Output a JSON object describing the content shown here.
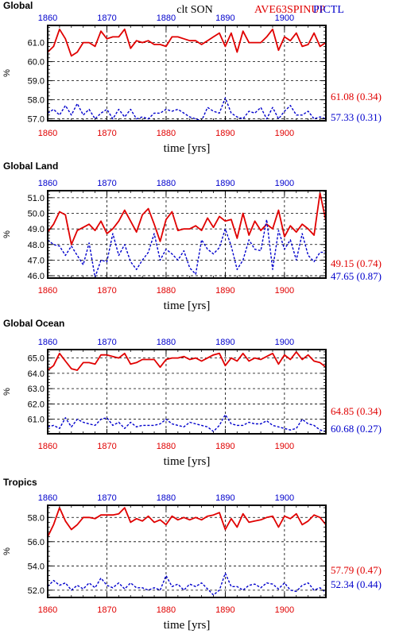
{
  "header": {
    "center_title": "clt SON",
    "exp_label": "AVE63SPINUP",
    "ctl_label": "PICTL"
  },
  "colors": {
    "exp": "#e00000",
    "ctl": "#0000cc",
    "axis": "#000000",
    "grid": "#000000"
  },
  "chart_data": [
    {
      "type": "line",
      "panel": "Global",
      "title": "Global",
      "xlabel": "time [yrs]",
      "ylabel": "%",
      "xlim": [
        1860,
        1907
      ],
      "ylim": [
        56.9,
        61.9
      ],
      "yticks": [
        57.0,
        58.0,
        59.0,
        60.0,
        61.0
      ],
      "xticks": [
        1860,
        1870,
        1880,
        1890,
        1900
      ],
      "grid": true,
      "summary_exp": "61.08 (0.34)",
      "summary_ctl": "57.33 (0.31)",
      "series": [
        {
          "name": "AVE63SPINUP",
          "color": "#e00000",
          "style": "solid",
          "x": [
            1860,
            1861,
            1862,
            1863,
            1864,
            1865,
            1866,
            1867,
            1868,
            1869,
            1870,
            1871,
            1872,
            1873,
            1874,
            1875,
            1876,
            1877,
            1878,
            1879,
            1880,
            1881,
            1882,
            1883,
            1884,
            1885,
            1886,
            1887,
            1888,
            1889,
            1890,
            1891,
            1892,
            1893,
            1894,
            1895,
            1896,
            1897,
            1898,
            1899,
            1900,
            1901,
            1902,
            1903,
            1904,
            1905,
            1906,
            1907
          ],
          "values": [
            60.5,
            60.8,
            61.7,
            61.2,
            60.3,
            60.5,
            61.0,
            61.0,
            60.8,
            61.6,
            61.2,
            61.3,
            61.3,
            61.7,
            60.7,
            61.1,
            61.0,
            61.1,
            60.9,
            60.9,
            60.8,
            61.3,
            61.3,
            61.2,
            61.1,
            61.1,
            60.9,
            61.1,
            61.3,
            61.5,
            60.8,
            61.5,
            60.5,
            61.6,
            61.0,
            61.0,
            61.0,
            61.3,
            61.7,
            60.6,
            61.3,
            61.1,
            61.5,
            60.8,
            60.9,
            61.5,
            60.8,
            61.0
          ]
        },
        {
          "name": "PICTL",
          "color": "#0000cc",
          "style": "dashed",
          "x": [
            1860,
            1861,
            1862,
            1863,
            1864,
            1865,
            1866,
            1867,
            1868,
            1869,
            1870,
            1871,
            1872,
            1873,
            1874,
            1875,
            1876,
            1877,
            1878,
            1879,
            1880,
            1881,
            1882,
            1883,
            1884,
            1885,
            1886,
            1887,
            1888,
            1889,
            1890,
            1891,
            1892,
            1893,
            1894,
            1895,
            1896,
            1897,
            1898,
            1899,
            1900,
            1901,
            1902,
            1903,
            1904,
            1905,
            1906,
            1907
          ],
          "values": [
            57.3,
            57.5,
            57.2,
            57.7,
            57.2,
            57.8,
            57.2,
            57.5,
            57.0,
            57.3,
            57.5,
            57.0,
            57.5,
            57.1,
            57.5,
            57.0,
            57.1,
            57.0,
            57.3,
            57.3,
            57.5,
            57.4,
            57.5,
            57.3,
            57.1,
            57.0,
            56.9,
            57.6,
            57.4,
            57.3,
            58.1,
            57.3,
            57.1,
            57.0,
            57.4,
            57.3,
            57.6,
            57.0,
            57.6,
            57.0,
            57.4,
            57.7,
            57.2,
            57.2,
            57.4,
            57.0,
            57.1,
            57.0
          ]
        }
      ]
    },
    {
      "type": "line",
      "panel": "Global Land",
      "title": "Global Land",
      "xlabel": "time [yrs]",
      "ylabel": "%",
      "xlim": [
        1860,
        1907
      ],
      "ylim": [
        45.85,
        51.45
      ],
      "yticks": [
        46.0,
        47.0,
        48.0,
        49.0,
        50.0,
        51.0
      ],
      "xticks": [
        1860,
        1870,
        1880,
        1890,
        1900
      ],
      "grid": true,
      "summary_exp": "49.15 (0.74)",
      "summary_ctl": "47.65 (0.87)",
      "series": [
        {
          "name": "AVE63SPINUP",
          "color": "#e00000",
          "style": "solid",
          "x": [
            1860,
            1861,
            1862,
            1863,
            1864,
            1865,
            1866,
            1867,
            1868,
            1869,
            1870,
            1871,
            1872,
            1873,
            1874,
            1875,
            1876,
            1877,
            1878,
            1879,
            1880,
            1881,
            1882,
            1883,
            1884,
            1885,
            1886,
            1887,
            1888,
            1889,
            1890,
            1891,
            1892,
            1893,
            1894,
            1895,
            1896,
            1897,
            1898,
            1899,
            1900,
            1901,
            1902,
            1903,
            1904,
            1905,
            1906,
            1907
          ],
          "values": [
            48.8,
            49.3,
            50.1,
            49.9,
            48.0,
            48.9,
            49.1,
            49.3,
            48.9,
            49.5,
            48.7,
            49.0,
            49.5,
            50.2,
            49.5,
            48.8,
            49.9,
            50.3,
            49.3,
            48.2,
            49.6,
            50.1,
            48.9,
            49.0,
            49.0,
            49.2,
            48.9,
            49.7,
            49.1,
            49.8,
            49.5,
            49.6,
            48.4,
            50.0,
            48.6,
            49.5,
            48.9,
            49.3,
            49.0,
            50.2,
            48.5,
            49.2,
            48.8,
            49.3,
            49.0,
            48.6,
            51.3,
            49.5
          ]
        },
        {
          "name": "PICTL",
          "color": "#0000cc",
          "style": "dashed",
          "x": [
            1860,
            1861,
            1862,
            1863,
            1864,
            1865,
            1866,
            1867,
            1868,
            1869,
            1870,
            1871,
            1872,
            1873,
            1874,
            1875,
            1876,
            1877,
            1878,
            1879,
            1880,
            1881,
            1882,
            1883,
            1884,
            1885,
            1886,
            1887,
            1888,
            1889,
            1890,
            1891,
            1892,
            1893,
            1894,
            1895,
            1896,
            1897,
            1898,
            1899,
            1900,
            1901,
            1902,
            1903,
            1904,
            1905,
            1906,
            1907
          ],
          "values": [
            48.3,
            48.0,
            47.9,
            47.3,
            47.9,
            47.3,
            46.7,
            48.1,
            45.9,
            47.0,
            46.9,
            48.7,
            47.3,
            48.0,
            46.9,
            46.4,
            47.0,
            47.5,
            48.7,
            47.0,
            47.7,
            47.4,
            47.0,
            47.6,
            46.5,
            46.1,
            48.3,
            47.7,
            47.4,
            47.8,
            49.0,
            47.9,
            46.4,
            47.0,
            48.3,
            47.7,
            47.6,
            49.6,
            46.4,
            48.9,
            47.7,
            48.3,
            47.0,
            48.7,
            47.3,
            46.9,
            47.5,
            47.5
          ]
        }
      ]
    },
    {
      "type": "line",
      "panel": "Global Ocean",
      "title": "Global Ocean",
      "xlabel": "time [yrs]",
      "ylabel": "%",
      "xlim": [
        1860,
        1907
      ],
      "ylim": [
        60.05,
        65.55
      ],
      "yticks": [
        61.0,
        62.0,
        63.0,
        64.0,
        65.0
      ],
      "xticks": [
        1860,
        1870,
        1880,
        1890,
        1900
      ],
      "grid": true,
      "summary_exp": "64.85 (0.34)",
      "summary_ctl": "60.68 (0.27)",
      "series": [
        {
          "name": "AVE63SPINUP",
          "color": "#e00000",
          "style": "solid",
          "x": [
            1860,
            1861,
            1862,
            1863,
            1864,
            1865,
            1866,
            1867,
            1868,
            1869,
            1870,
            1871,
            1872,
            1873,
            1874,
            1875,
            1876,
            1877,
            1878,
            1879,
            1880,
            1881,
            1882,
            1883,
            1884,
            1885,
            1886,
            1887,
            1888,
            1889,
            1890,
            1891,
            1892,
            1893,
            1894,
            1895,
            1896,
            1897,
            1898,
            1899,
            1900,
            1901,
            1902,
            1903,
            1904,
            1905,
            1906,
            1907
          ],
          "values": [
            64.2,
            64.5,
            65.3,
            64.8,
            64.3,
            64.2,
            64.7,
            64.7,
            64.6,
            65.2,
            65.2,
            65.1,
            65.0,
            65.3,
            64.6,
            64.7,
            64.9,
            64.9,
            64.9,
            64.4,
            64.9,
            65.0,
            65.0,
            65.1,
            64.9,
            65.0,
            64.8,
            65.0,
            65.2,
            65.3,
            64.5,
            65.0,
            64.8,
            65.3,
            64.8,
            65.0,
            64.9,
            65.1,
            65.3,
            64.6,
            65.2,
            64.9,
            65.4,
            64.9,
            65.2,
            64.8,
            64.7,
            64.4
          ]
        },
        {
          "name": "PICTL",
          "color": "#0000cc",
          "style": "dashed",
          "x": [
            1860,
            1861,
            1862,
            1863,
            1864,
            1865,
            1866,
            1867,
            1868,
            1869,
            1870,
            1871,
            1872,
            1873,
            1874,
            1875,
            1876,
            1877,
            1878,
            1879,
            1880,
            1881,
            1882,
            1883,
            1884,
            1885,
            1886,
            1887,
            1888,
            1889,
            1890,
            1891,
            1892,
            1893,
            1894,
            1895,
            1896,
            1897,
            1898,
            1899,
            1900,
            1901,
            1902,
            1903,
            1904,
            1905,
            1906,
            1907
          ],
          "values": [
            60.5,
            60.6,
            60.4,
            61.1,
            60.5,
            61.0,
            60.8,
            60.7,
            60.6,
            61.0,
            61.1,
            60.6,
            60.8,
            60.4,
            60.8,
            60.5,
            60.6,
            60.6,
            60.6,
            60.7,
            61.0,
            60.7,
            60.6,
            60.5,
            60.8,
            60.7,
            60.6,
            60.5,
            60.2,
            60.6,
            61.3,
            60.7,
            60.6,
            60.6,
            60.8,
            60.7,
            60.7,
            60.9,
            60.6,
            60.5,
            60.4,
            60.3,
            60.4,
            61.0,
            60.7,
            60.6,
            60.3,
            60.2
          ]
        }
      ]
    },
    {
      "type": "line",
      "panel": "Tropics",
      "title": "Tropics",
      "xlabel": "time [yrs]",
      "ylabel": "%",
      "xlim": [
        1860,
        1907
      ],
      "ylim": [
        51.4,
        59.0
      ],
      "yticks": [
        52.0,
        54.0,
        56.0,
        58.0
      ],
      "xticks": [
        1860,
        1870,
        1880,
        1890,
        1900
      ],
      "grid": true,
      "summary_exp": "57.79 (0.47)",
      "summary_ctl": "52.34 (0.44)",
      "series": [
        {
          "name": "AVE63SPINUP",
          "color": "#e00000",
          "style": "solid",
          "x": [
            1860,
            1861,
            1862,
            1863,
            1864,
            1865,
            1866,
            1867,
            1868,
            1869,
            1870,
            1871,
            1872,
            1873,
            1874,
            1875,
            1876,
            1877,
            1878,
            1879,
            1880,
            1881,
            1882,
            1883,
            1884,
            1885,
            1886,
            1887,
            1888,
            1889,
            1890,
            1891,
            1892,
            1893,
            1894,
            1895,
            1896,
            1897,
            1898,
            1899,
            1900,
            1901,
            1902,
            1903,
            1904,
            1905,
            1906,
            1907
          ],
          "values": [
            56.4,
            57.4,
            58.8,
            57.7,
            57.0,
            57.4,
            58.0,
            58.0,
            57.9,
            58.2,
            58.2,
            58.2,
            58.3,
            58.8,
            57.6,
            57.9,
            57.7,
            58.1,
            57.6,
            57.8,
            57.4,
            58.1,
            57.8,
            58.0,
            57.8,
            58.0,
            57.8,
            58.1,
            58.2,
            58.4,
            57.0,
            57.9,
            57.2,
            58.3,
            57.6,
            57.7,
            57.8,
            58.0,
            58.1,
            57.2,
            58.1,
            57.9,
            58.3,
            57.4,
            57.7,
            58.2,
            58.0,
            57.4
          ]
        },
        {
          "name": "PICTL",
          "color": "#0000cc",
          "style": "dashed",
          "x": [
            1860,
            1861,
            1862,
            1863,
            1864,
            1865,
            1866,
            1867,
            1868,
            1869,
            1870,
            1871,
            1872,
            1873,
            1874,
            1875,
            1876,
            1877,
            1878,
            1879,
            1880,
            1881,
            1882,
            1883,
            1884,
            1885,
            1886,
            1887,
            1888,
            1889,
            1890,
            1891,
            1892,
            1893,
            1894,
            1895,
            1896,
            1897,
            1898,
            1899,
            1900,
            1901,
            1902,
            1903,
            1904,
            1905,
            1906,
            1907
          ],
          "values": [
            52.3,
            52.8,
            52.4,
            52.6,
            52.0,
            52.4,
            52.1,
            52.6,
            52.2,
            53.0,
            52.4,
            52.2,
            52.6,
            52.1,
            52.6,
            52.2,
            52.2,
            52.0,
            52.2,
            52.0,
            53.2,
            52.3,
            52.5,
            52.0,
            52.5,
            52.3,
            52.6,
            52.1,
            51.6,
            52.0,
            53.4,
            52.3,
            52.3,
            52.0,
            52.4,
            52.5,
            52.2,
            52.6,
            52.5,
            52.1,
            52.6,
            52.0,
            51.9,
            52.4,
            52.6,
            52.0,
            52.2,
            51.8
          ]
        }
      ]
    }
  ]
}
